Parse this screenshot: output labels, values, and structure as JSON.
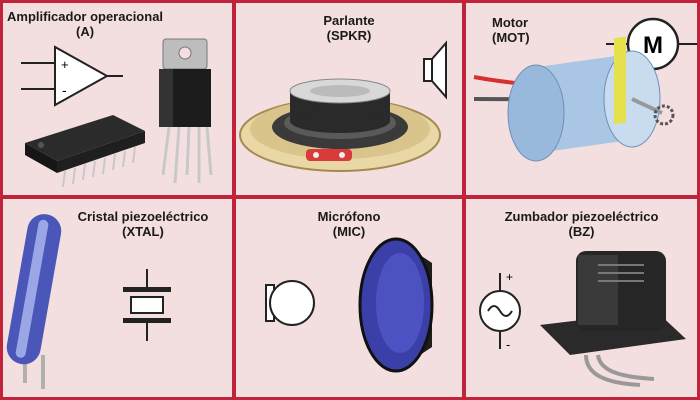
{
  "components": [
    {
      "name": "Amplificador operacional",
      "code": "(A)"
    },
    {
      "name": "Parlante",
      "code": "(SPKR)"
    },
    {
      "name": "Motor",
      "code": "(MOT)"
    },
    {
      "name": "Cristal piezoeléctrico",
      "code": "(XTAL)"
    },
    {
      "name": "Micrófono",
      "code": "(MIC)"
    },
    {
      "name": "Zumbador piezoeléctrico",
      "code": "(BZ)"
    }
  ],
  "symbols": {
    "opamp_plus": "+",
    "opamp_minus": "-",
    "motor_letter": "M",
    "buzzer_plus": "+",
    "buzzer_minus": "-"
  },
  "icons": [
    "opamp-symbol-icon",
    "ic-chip-icon",
    "voltage-regulator-icon",
    "speaker-symbol-icon",
    "speaker-photo-icon",
    "motor-symbol-icon",
    "motor-photo-icon",
    "crystal-symbol-icon",
    "crystal-photo-icon",
    "microphone-symbol-icon",
    "microphone-photo-icon",
    "buzzer-symbol-icon",
    "buzzer-photo-icon"
  ],
  "colors": {
    "frame": "#c0233a",
    "panel": "#f4dfe0",
    "motor_body": "#a9c6e4",
    "motor_band": "#e6e04c",
    "mic_face": "#3b3fa8"
  }
}
